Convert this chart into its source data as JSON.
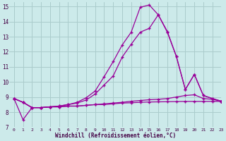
{
  "background_color": "#cceaea",
  "grid_color": "#aacccc",
  "line_color": "#990099",
  "xlabel": "Windchill (Refroidissement éolien,°C)",
  "xlim": [
    -0.5,
    23
  ],
  "ylim": [
    7,
    15.3
  ],
  "yticks": [
    7,
    8,
    9,
    10,
    11,
    12,
    13,
    14,
    15
  ],
  "xticks": [
    0,
    1,
    2,
    3,
    4,
    5,
    6,
    7,
    8,
    9,
    10,
    11,
    12,
    13,
    14,
    15,
    16,
    17,
    18,
    19,
    20,
    21,
    22,
    23
  ],
  "line1_x": [
    0,
    1,
    2,
    3,
    4,
    5,
    6,
    7,
    8,
    9,
    10,
    11,
    12,
    13,
    14,
    15,
    16,
    17,
    18,
    19,
    20,
    21,
    22,
    23
  ],
  "line1_y": [
    8.9,
    7.5,
    8.3,
    8.3,
    8.35,
    8.35,
    8.4,
    8.4,
    8.45,
    8.5,
    8.5,
    8.55,
    8.6,
    8.62,
    8.65,
    8.67,
    8.68,
    8.69,
    8.7,
    8.71,
    8.71,
    8.71,
    8.71,
    8.71
  ],
  "line2_x": [
    0,
    1,
    2,
    3,
    4,
    5,
    6,
    7,
    8,
    9,
    10,
    11,
    12,
    13,
    14,
    15,
    16,
    17,
    18,
    19,
    20,
    21,
    22,
    23
  ],
  "line2_y": [
    8.9,
    8.65,
    8.3,
    8.3,
    8.35,
    8.35,
    8.4,
    8.4,
    8.45,
    8.5,
    8.55,
    8.6,
    8.65,
    8.72,
    8.77,
    8.82,
    8.85,
    8.9,
    9.0,
    9.1,
    9.15,
    8.9,
    8.85,
    8.72
  ],
  "line3_x": [
    0,
    1,
    2,
    3,
    4,
    5,
    6,
    7,
    8,
    9,
    10,
    11,
    12,
    13,
    14,
    15,
    16,
    17,
    18,
    19,
    20,
    21,
    22,
    23
  ],
  "line3_y": [
    8.9,
    8.65,
    8.3,
    8.3,
    8.35,
    8.4,
    8.5,
    8.6,
    8.8,
    9.2,
    9.8,
    10.4,
    11.65,
    12.5,
    13.3,
    13.55,
    14.45,
    13.35,
    11.7,
    9.5,
    10.5,
    9.1,
    8.9,
    8.72
  ],
  "line4_x": [
    0,
    1,
    2,
    3,
    4,
    5,
    6,
    7,
    8,
    9,
    10,
    11,
    12,
    13,
    14,
    15,
    16,
    17,
    18,
    19,
    20,
    21,
    22,
    23
  ],
  "line4_y": [
    8.9,
    8.65,
    8.3,
    8.3,
    8.35,
    8.4,
    8.5,
    8.65,
    8.95,
    9.4,
    10.35,
    11.35,
    12.45,
    13.3,
    14.95,
    15.1,
    14.45,
    13.3,
    11.7,
    9.5,
    10.5,
    9.1,
    8.9,
    8.72
  ]
}
